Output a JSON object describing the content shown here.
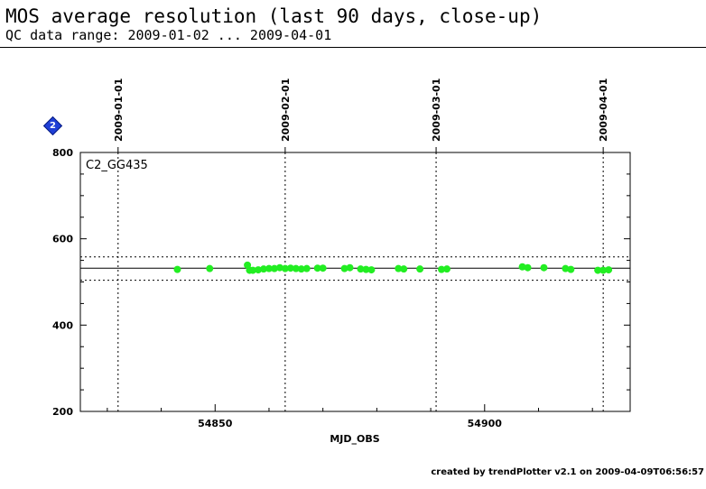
{
  "header": {
    "title": "MOS average resolution (last 90 days, close-up)",
    "subtitle": "QC data range: 2009-01-02 ... 2009-04-01"
  },
  "footer": {
    "text": "created by trendPlotter v2.1 on 2009-04-09T06:56:57"
  },
  "badge": {
    "label": "2",
    "color": "#1f3fd6"
  },
  "chart_data": {
    "type": "scatter",
    "panel_label": "C2_GG435",
    "xlabel": "MJD_OBS",
    "ylabel": "",
    "xlim": [
      54825,
      54927
    ],
    "ylim": [
      200,
      800
    ],
    "x_ticks": [
      54850,
      54900
    ],
    "y_ticks": [
      200,
      400,
      600,
      800
    ],
    "grid": false,
    "marker_color": "#22ee22",
    "reference_lines": {
      "mean": 532,
      "upper": 558,
      "lower": 504
    },
    "date_markers": [
      {
        "label": "2009-01-01",
        "x": 54832
      },
      {
        "label": "2009-02-01",
        "x": 54863
      },
      {
        "label": "2009-03-01",
        "x": 54891
      },
      {
        "label": "2009-04-01",
        "x": 54922
      }
    ],
    "points": [
      {
        "x": 54843,
        "y": 529
      },
      {
        "x": 54849,
        "y": 531
      },
      {
        "x": 54856,
        "y": 539
      },
      {
        "x": 54856.4,
        "y": 527
      },
      {
        "x": 54857,
        "y": 527
      },
      {
        "x": 54858,
        "y": 528
      },
      {
        "x": 54859,
        "y": 530
      },
      {
        "x": 54860,
        "y": 531
      },
      {
        "x": 54861,
        "y": 531
      },
      {
        "x": 54862,
        "y": 533
      },
      {
        "x": 54863,
        "y": 531
      },
      {
        "x": 54864,
        "y": 532
      },
      {
        "x": 54865,
        "y": 531
      },
      {
        "x": 54866,
        "y": 530
      },
      {
        "x": 54867,
        "y": 531
      },
      {
        "x": 54869,
        "y": 532
      },
      {
        "x": 54870,
        "y": 532
      },
      {
        "x": 54874,
        "y": 531
      },
      {
        "x": 54875,
        "y": 533
      },
      {
        "x": 54877,
        "y": 530
      },
      {
        "x": 54878,
        "y": 529
      },
      {
        "x": 54879,
        "y": 528
      },
      {
        "x": 54884,
        "y": 531
      },
      {
        "x": 54885,
        "y": 530
      },
      {
        "x": 54888,
        "y": 530
      },
      {
        "x": 54892,
        "y": 529
      },
      {
        "x": 54893,
        "y": 530
      },
      {
        "x": 54907,
        "y": 535
      },
      {
        "x": 54908,
        "y": 533
      },
      {
        "x": 54911,
        "y": 533
      },
      {
        "x": 54915,
        "y": 531
      },
      {
        "x": 54916,
        "y": 529
      },
      {
        "x": 54921,
        "y": 527
      },
      {
        "x": 54922,
        "y": 527
      },
      {
        "x": 54923,
        "y": 528
      }
    ]
  }
}
